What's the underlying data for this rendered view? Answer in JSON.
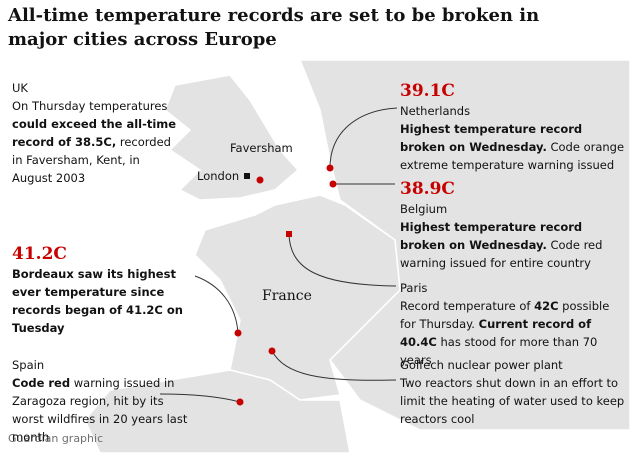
{
  "title": "All-time temperature records are set to be broken in major cities across Europe",
  "places": [
    {
      "label": "Faversham",
      "kind": "city"
    },
    {
      "label": "London",
      "kind": "city"
    },
    {
      "label": "France",
      "kind": "country"
    }
  ],
  "annotations": [
    {
      "figure": null,
      "heading": "UK",
      "text": [
        {
          "text": "On Thursday temperatures ",
          "bold": false
        },
        {
          "text": "could exceed the all-time record of 38.5C,",
          "bold": true
        },
        {
          "text": " recorded in Faversham, Kent, in August 2003",
          "bold": false
        }
      ]
    },
    {
      "figure": "39.1C",
      "heading": "Netherlands",
      "text": [
        {
          "text": "Highest temperature record broken on Wednesday.",
          "bold": true
        },
        {
          "text": " Code orange extreme temperature warning issued",
          "bold": false
        }
      ]
    },
    {
      "figure": "38.9C",
      "heading": "Belgium",
      "text": [
        {
          "text": "Highest temperature record broken on Wednesday.",
          "bold": true
        },
        {
          "text": " Code red warning issued for entire country",
          "bold": false
        }
      ]
    },
    {
      "figure": "41.2C",
      "heading": null,
      "text": [
        {
          "text": "Bordeaux saw its highest ever temperature since records began of 41.2C on Tuesday",
          "bold": true
        }
      ]
    },
    {
      "figure": null,
      "heading": "Paris",
      "text": [
        {
          "text": "Record temperature of ",
          "bold": false
        },
        {
          "text": "42C",
          "bold": true
        },
        {
          "text": " possible for Thursday. ",
          "bold": false
        },
        {
          "text": "Current record of 40.4C",
          "bold": true
        },
        {
          "text": " has stood for more than 70 years",
          "bold": false
        }
      ]
    },
    {
      "figure": null,
      "heading": "Spain",
      "text": [
        {
          "text": "Code red",
          "bold": true
        },
        {
          "text": " warning issued in Zaragoza region, hit by its worst wildfires in 20 years last month",
          "bold": false
        }
      ]
    },
    {
      "figure": null,
      "heading": "Golfech nuclear power plant",
      "text": [
        {
          "text": "Two reactors shut down in an effort to limit the heating of water used to keep reactors cool",
          "bold": false
        }
      ]
    }
  ],
  "source": "Guardian graphic"
}
